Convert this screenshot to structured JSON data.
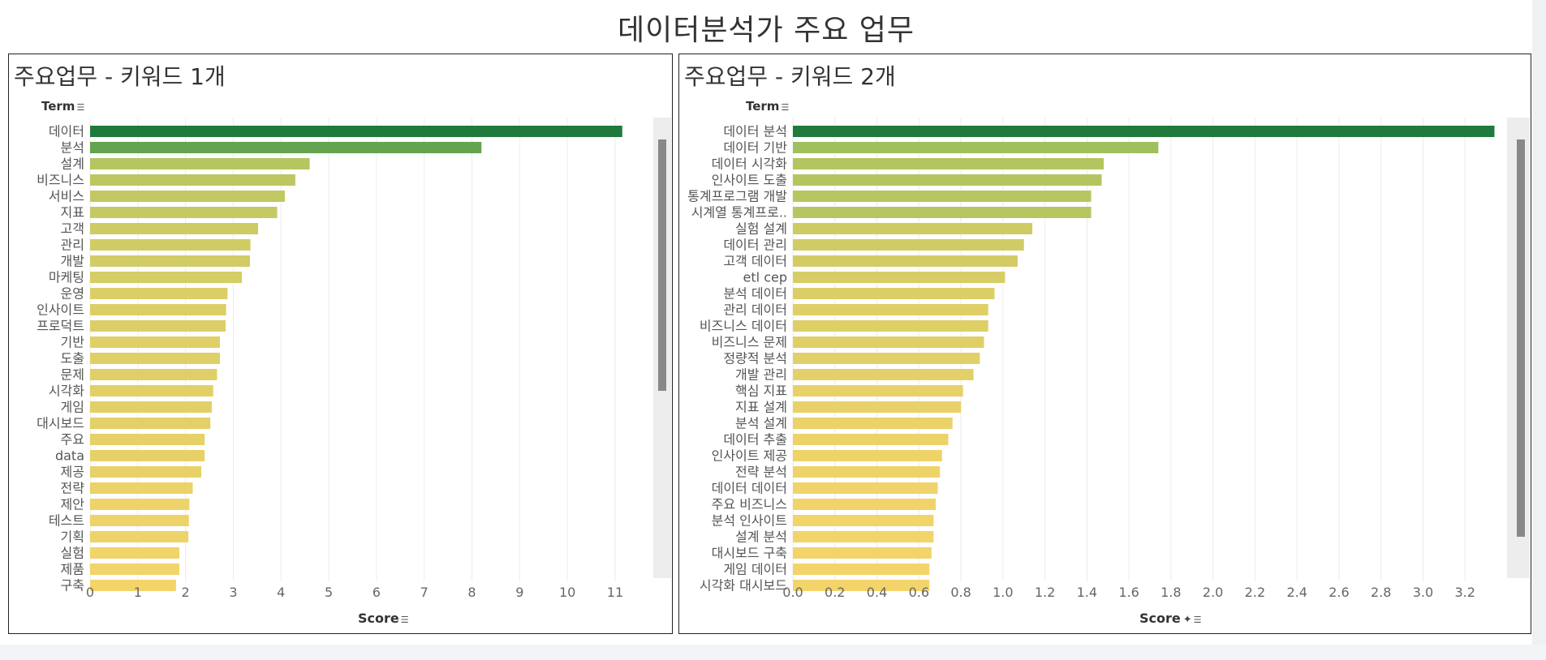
{
  "title": "데이터분석가 주요 업무",
  "colors": {
    "high": "#1f7a3c",
    "mid": "#8cbb5a",
    "low": "#f3d46a"
  },
  "icons": {
    "sort": "sort-icon",
    "pin": "pin-icon"
  },
  "panels": [
    {
      "title": "주요업무 - 키워드 1개",
      "term_label": "Term",
      "score_label": "Score"
    },
    {
      "title": "주요업무 - 키워드 2개",
      "term_label": "Term",
      "score_label": "Score"
    }
  ],
  "chart_data": [
    {
      "type": "bar",
      "orientation": "horizontal",
      "title": "주요업무 - 키워드 1개",
      "xlabel": "Score",
      "ylabel": "Term",
      "xlim": [
        0,
        11.8
      ],
      "xticks": [
        0,
        1,
        2,
        3,
        4,
        5,
        6,
        7,
        8,
        9,
        10,
        11
      ],
      "grid": true,
      "categories": [
        "데이터",
        "분석",
        "설계",
        "비즈니스",
        "서비스",
        "지표",
        "고객",
        "관리",
        "개발",
        "마케팅",
        "운영",
        "인사이트",
        "프로덕트",
        "기반",
        "도출",
        "문제",
        "시각화",
        "게임",
        "대시보드",
        "주요",
        "data",
        "제공",
        "전략",
        "제안",
        "테스트",
        "기획",
        "실험",
        "제품",
        "구축"
      ],
      "values": [
        11.15,
        8.2,
        4.6,
        4.3,
        4.08,
        3.92,
        3.52,
        3.36,
        3.35,
        3.18,
        2.88,
        2.85,
        2.84,
        2.72,
        2.72,
        2.66,
        2.58,
        2.55,
        2.52,
        2.4,
        2.4,
        2.33,
        2.15,
        2.08,
        2.07,
        2.06,
        1.87,
        1.87,
        1.8
      ]
    },
    {
      "type": "bar",
      "orientation": "horizontal",
      "title": "주요업무 - 키워드 2개",
      "xlabel": "Score",
      "ylabel": "Term",
      "xlim": [
        0,
        3.4
      ],
      "xticks": [
        0.0,
        0.2,
        0.4,
        0.6,
        0.8,
        1.0,
        1.2,
        1.4,
        1.6,
        1.8,
        2.0,
        2.2,
        2.4,
        2.6,
        2.8,
        3.0,
        3.2
      ],
      "grid": true,
      "categories": [
        "데이터 분석",
        "데이터 기반",
        "데이터 시각화",
        "인사이트 도출",
        "통계프로그램 개발",
        "시계열 통계프로..",
        "실험 설계",
        "데이터 관리",
        "고객 데이터",
        "etl cep",
        "분석 데이터",
        "관리 데이터",
        "비즈니스 데이터",
        "비즈니스 문제",
        "정량적 분석",
        "개발 관리",
        "핵심 지표",
        "지표 설계",
        "분석 설계",
        "데이터 추출",
        "인사이트 제공",
        "전략 분석",
        "데이터 데이터",
        "주요 비즈니스",
        "분석 인사이트",
        "설계 분석",
        "대시보드 구축",
        "게임 데이터",
        "시각화 대시보드"
      ],
      "values": [
        3.34,
        1.74,
        1.48,
        1.47,
        1.42,
        1.42,
        1.14,
        1.1,
        1.07,
        1.01,
        0.96,
        0.93,
        0.93,
        0.91,
        0.89,
        0.86,
        0.81,
        0.8,
        0.76,
        0.74,
        0.71,
        0.7,
        0.69,
        0.68,
        0.67,
        0.67,
        0.66,
        0.65,
        0.65
      ]
    }
  ]
}
